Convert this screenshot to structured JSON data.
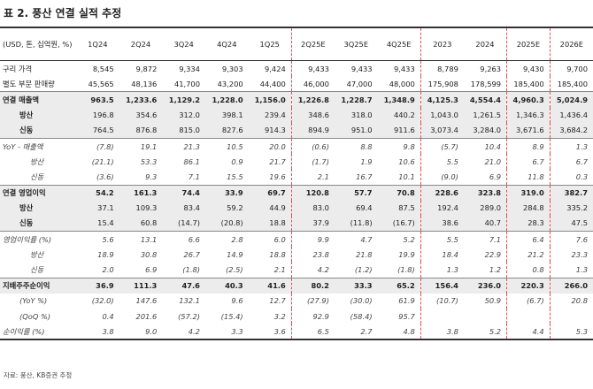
{
  "title": "표 2. 풍산 연결 실적 추정",
  "table": {
    "corner": "(USD, 톤, 십억원, %)",
    "columns": [
      "1Q24",
      "2Q24",
      "3Q24",
      "4Q24",
      "1Q25",
      "2Q25E",
      "3Q25E",
      "4Q25E",
      "2023",
      "2024",
      "2025E",
      "2026E"
    ],
    "rows": [
      {
        "label": "구리 가격",
        "values": [
          "8,545",
          "9,872",
          "9,334",
          "9,303",
          "9,424",
          "9,433",
          "9,433",
          "9,433",
          "8,789",
          "9,263",
          "9,430",
          "9,700"
        ]
      },
      {
        "label": "별도 부문 판매량",
        "values": [
          "45,565",
          "48,136",
          "41,700",
          "43,200",
          "44,400",
          "46,000",
          "47,000",
          "48,000",
          "175,908",
          "178,599",
          "185,400",
          "185,400"
        ]
      },
      {
        "label": "연결 매출액",
        "values": [
          "963.5",
          "1,233.6",
          "1,129.2",
          "1,228.0",
          "1,156.0",
          "1,226.8",
          "1,228.7",
          "1,348.9",
          "4,125.3",
          "4,554.4",
          "4,960.3",
          "5,024.9"
        ]
      },
      {
        "label": "방산",
        "values": [
          "196.8",
          "354.6",
          "312.0",
          "398.1",
          "239.4",
          "348.6",
          "318.0",
          "440.2",
          "1,043.0",
          "1,261.5",
          "1,346.3",
          "1,436.4"
        ]
      },
      {
        "label": "신동",
        "values": [
          "764.5",
          "876.8",
          "815.0",
          "827.6",
          "914.3",
          "894.9",
          "951.0",
          "911.6",
          "3,073.4",
          "3,284.0",
          "3,671.6",
          "3,684.2"
        ]
      },
      {
        "label": "YoY - 매출액",
        "values": [
          "(7.8)",
          "19.1",
          "21.3",
          "10.5",
          "20.0",
          "(0.6)",
          "8.8",
          "9.8",
          "(5.7)",
          "10.4",
          "8.9",
          "1.3"
        ]
      },
      {
        "label": "방산",
        "values": [
          "(21.1)",
          "53.3",
          "86.1",
          "0.9",
          "21.7",
          "(1.7)",
          "1.9",
          "10.6",
          "5.5",
          "21.0",
          "6.7",
          "6.7"
        ]
      },
      {
        "label": "신동",
        "values": [
          "(3.6)",
          "9.3",
          "7.1",
          "15.5",
          "19.6",
          "2.1",
          "16.7",
          "10.1",
          "(9.0)",
          "6.9",
          "11.8",
          "0.3"
        ]
      },
      {
        "label": "연결 영업이익",
        "values": [
          "54.2",
          "161.3",
          "74.4",
          "33.9",
          "69.7",
          "120.8",
          "57.7",
          "70.8",
          "228.6",
          "323.8",
          "319.0",
          "382.7"
        ]
      },
      {
        "label": "방산",
        "values": [
          "37.1",
          "109.3",
          "83.4",
          "59.2",
          "44.9",
          "83.0",
          "69.4",
          "87.5",
          "192.4",
          "289.0",
          "284.8",
          "335.2"
        ]
      },
      {
        "label": "신동",
        "values": [
          "15.4",
          "60.8",
          "(14.7)",
          "(20.8)",
          "18.8",
          "37.9",
          "(11.8)",
          "(16.7)",
          "38.6",
          "40.7",
          "28.3",
          "47.5"
        ]
      },
      {
        "label": "영업이익률 (%)",
        "values": [
          "5.6",
          "13.1",
          "6.6",
          "2.8",
          "6.0",
          "9.9",
          "4.7",
          "5.2",
          "5.5",
          "7.1",
          "6.4",
          "7.6"
        ]
      },
      {
        "label": "방산",
        "values": [
          "18.9",
          "30.8",
          "26.7",
          "14.9",
          "18.8",
          "23.8",
          "21.8",
          "19.9",
          "18.4",
          "22.9",
          "21.2",
          "23.3"
        ]
      },
      {
        "label": "신동",
        "values": [
          "2.0",
          "6.9",
          "(1.8)",
          "(2.5)",
          "2.1",
          "4.2",
          "(1.2)",
          "(1.8)",
          "1.3",
          "1.2",
          "0.8",
          "1.3"
        ]
      },
      {
        "label": "지배주주순이익",
        "values": [
          "36.9",
          "111.3",
          "47.6",
          "40.3",
          "41.6",
          "80.2",
          "33.3",
          "65.2",
          "156.4",
          "236.0",
          "220.3",
          "266.0"
        ]
      },
      {
        "label": "(YoY %)",
        "values": [
          "(32.0)",
          "147.6",
          "132.1",
          "9.6",
          "12.7",
          "(27.9)",
          "(30.0)",
          "61.9",
          "(10.7)",
          "50.9",
          "(6.7)",
          "20.8"
        ]
      },
      {
        "label": "(QoQ %)",
        "values": [
          "0.4",
          "201.6",
          "(57.2)",
          "(15.4)",
          "3.2",
          "92.9",
          "(58.4)",
          "95.7"
        ]
      },
      {
        "label": "순이익률 (%)",
        "values": [
          "3.8",
          "9.0",
          "4.2",
          "3.3",
          "3.6",
          "6.5",
          "2.7",
          "4.8",
          "3.8",
          "5.2",
          "4.4",
          "5.3"
        ]
      }
    ]
  },
  "source": "자료: 풍산, KB증권 추정"
}
